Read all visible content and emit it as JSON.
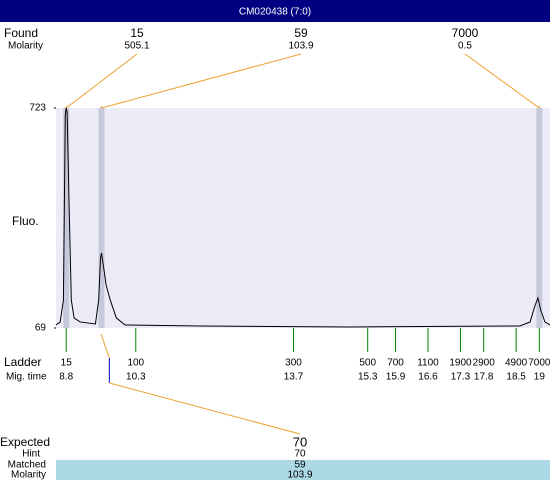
{
  "chart_data": {
    "type": "line",
    "title": "CM020438 (7:0)",
    "ylabel": "Fluo.",
    "x": [
      8.58,
      8.67,
      8.74,
      8.78,
      8.8,
      8.82,
      8.86,
      8.91,
      8.97,
      9.1,
      9.43,
      9.5,
      9.54,
      9.56,
      9.6,
      9.66,
      9.75,
      9.88,
      10.07,
      11.69,
      14.92,
      18.58,
      18.8,
      18.91,
      18.97,
      19.03,
      19.12,
      19.23
    ],
    "series": [
      {
        "color": "#000000",
        "values": [
          78,
          87,
          152,
          702,
          723,
          711,
          449,
          152,
          99,
          87,
          81,
          152,
          277,
          292,
          256,
          197,
          152,
          99,
          78,
          75,
          72,
          75,
          87,
          137,
          158,
          122,
          87,
          78
        ]
      }
    ],
    "xlim": [
      8.58,
      19.23
    ],
    "ylim": [
      69,
      723
    ],
    "yticks": [
      69,
      723
    ],
    "found": {
      "label": "Found",
      "molarity_label": "Molarity",
      "peaks": [
        {
          "size": 15,
          "molarity": 505.1,
          "time": 8.8
        },
        {
          "size": 59,
          "molarity": 103.9,
          "time": 9.56
        },
        {
          "size": 7000,
          "molarity": 0.5,
          "time": 19
        }
      ]
    },
    "ladder": {
      "label": "Ladder",
      "time_label": "Mig. time",
      "sizes": [
        15,
        100,
        300,
        500,
        700,
        1100,
        1900,
        2900,
        4900,
        7000
      ],
      "times": [
        8.8,
        10.3,
        13.7,
        15.3,
        15.9,
        16.6,
        17.3,
        17.8,
        18.5,
        19
      ]
    },
    "expected": {
      "label": "Expected",
      "value": 70,
      "time": 9.73,
      "hint_label": "Hint",
      "hint": 70,
      "matched_label": "Matched",
      "matched": 59,
      "molarity_label": "Molarity",
      "molarity": 103.9
    }
  }
}
